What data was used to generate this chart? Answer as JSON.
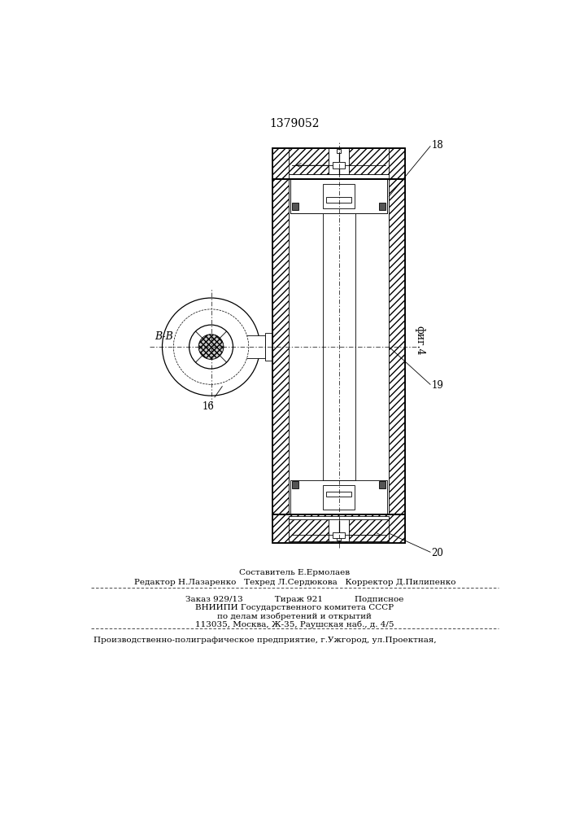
{
  "patent_number": "1379052",
  "fig_label": "фиг.4",
  "section_label": "B-B",
  "footer_lines": [
    "Составитель Е.Ермолаев",
    "Редактор Н.Лазаренко   Техред Л.Сердюкова   Корректор Д.Пилипенко",
    "Заказ 929/13            Тираж 921            Подписное",
    "ВНИИПИ Государственного комитета СССР",
    "по делам изобретений и открытий",
    "113035, Москва, Ж-35, Раушская наб., д. 4/5",
    "Производственно-полиграфическое предприятие, г.Ужгород, ул.Проектная,"
  ],
  "bg_color": "#ffffff",
  "line_color": "#000000"
}
